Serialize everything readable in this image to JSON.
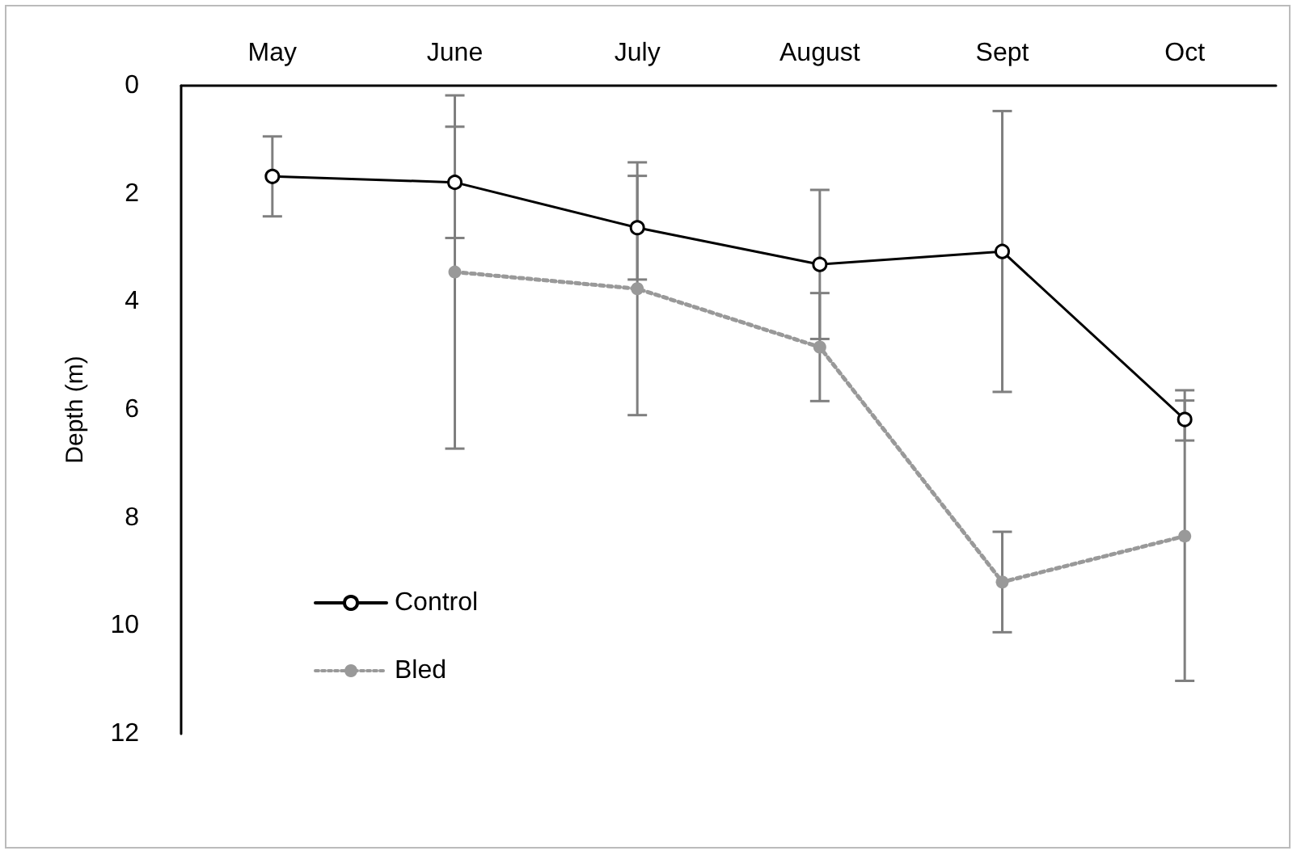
{
  "chart_data": {
    "type": "line",
    "ylabel": "Depth (m)",
    "categories": [
      "May",
      "June",
      "July",
      "August",
      "Sept",
      "Oct"
    ],
    "ylim": [
      12,
      0
    ],
    "yticks": [
      0,
      2,
      4,
      6,
      8,
      10,
      12
    ],
    "grid": false,
    "legend": "bottom left",
    "marker": "circle",
    "series": [
      {
        "name": "Control",
        "color": "#000000",
        "line_style": "solid",
        "values": [
          1.68,
          1.79,
          2.63,
          3.31,
          3.07,
          6.18
        ],
        "errors": [
          0.74,
          1.03,
          0.96,
          [
            1.93,
            4.69
          ],
          2.6,
          [
            5.64,
            6.57
          ]
        ]
      },
      {
        "name": "Bled",
        "color": "#999999",
        "line_style": "dotted",
        "values": [
          null,
          3.45,
          3.76,
          4.84,
          9.19,
          8.34
        ],
        "errors": [
          null,
          3.27,
          2.34,
          1.0,
          0.93,
          [
            5.83,
            11.02
          ]
        ]
      }
    ]
  }
}
